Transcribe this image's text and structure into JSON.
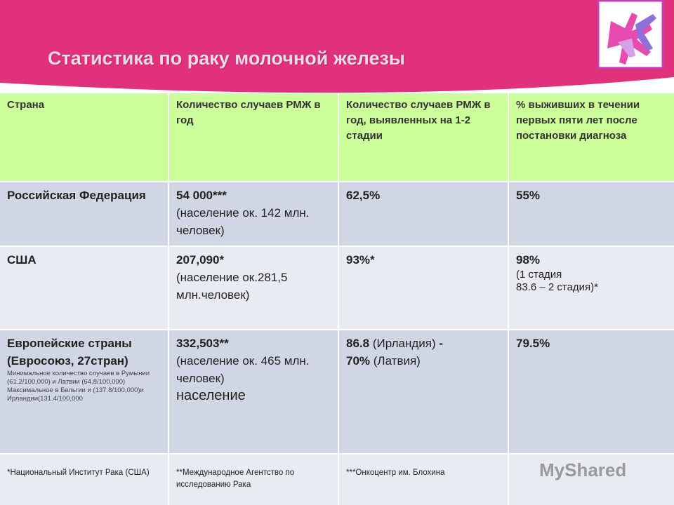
{
  "header": {
    "title": "Статистика по раку молочной железы"
  },
  "table": {
    "header": [
      "Страна",
      "Количество случаев РМЖ в год",
      "Количество случаев РМЖ в год, выявленных на 1-2 стадии",
      "% выживших в течении первых пяти лет после постановки диагноза"
    ],
    "rows": [
      [
        [
          "Российская Федерация"
        ],
        [
          "54 000***",
          "(население ок. 142 млн. человек)"
        ],
        [
          "62,5%"
        ],
        [
          "55%"
        ]
      ],
      [
        [
          "США"
        ],
        [
          "207,090*",
          "(население ок.281,5 млн.человек)"
        ],
        [
          "93%*"
        ],
        [
          "98%",
          "(1 стадия",
          "83.6 – 2 стадия)*"
        ]
      ],
      [
        [
          "Европейские страны (Евросоюз, 27стран)",
          "Минимальное количество случаев в Румынии (61.2/100,000) и Латвии (64.8/100,000)",
          "Максимальное в Бельгии и (137.8/100,000)и Ирландии(131.4/100,000"
        ],
        [
          "332,503**",
          "(население ок. 465 млн. человек)",
          "население"
        ],
        [
          "86.8",
          "(Ирландия)",
          "-",
          "70%",
          "(Латвия)"
        ],
        [
          "79.5%"
        ]
      ]
    ],
    "footnotes": [
      "*Национальный Институт Рака (США)",
      "**Международное Агентство по исследованию Рака",
      "***Онкоцентр им. Блохина"
    ]
  },
  "watermark": "MyShared"
}
